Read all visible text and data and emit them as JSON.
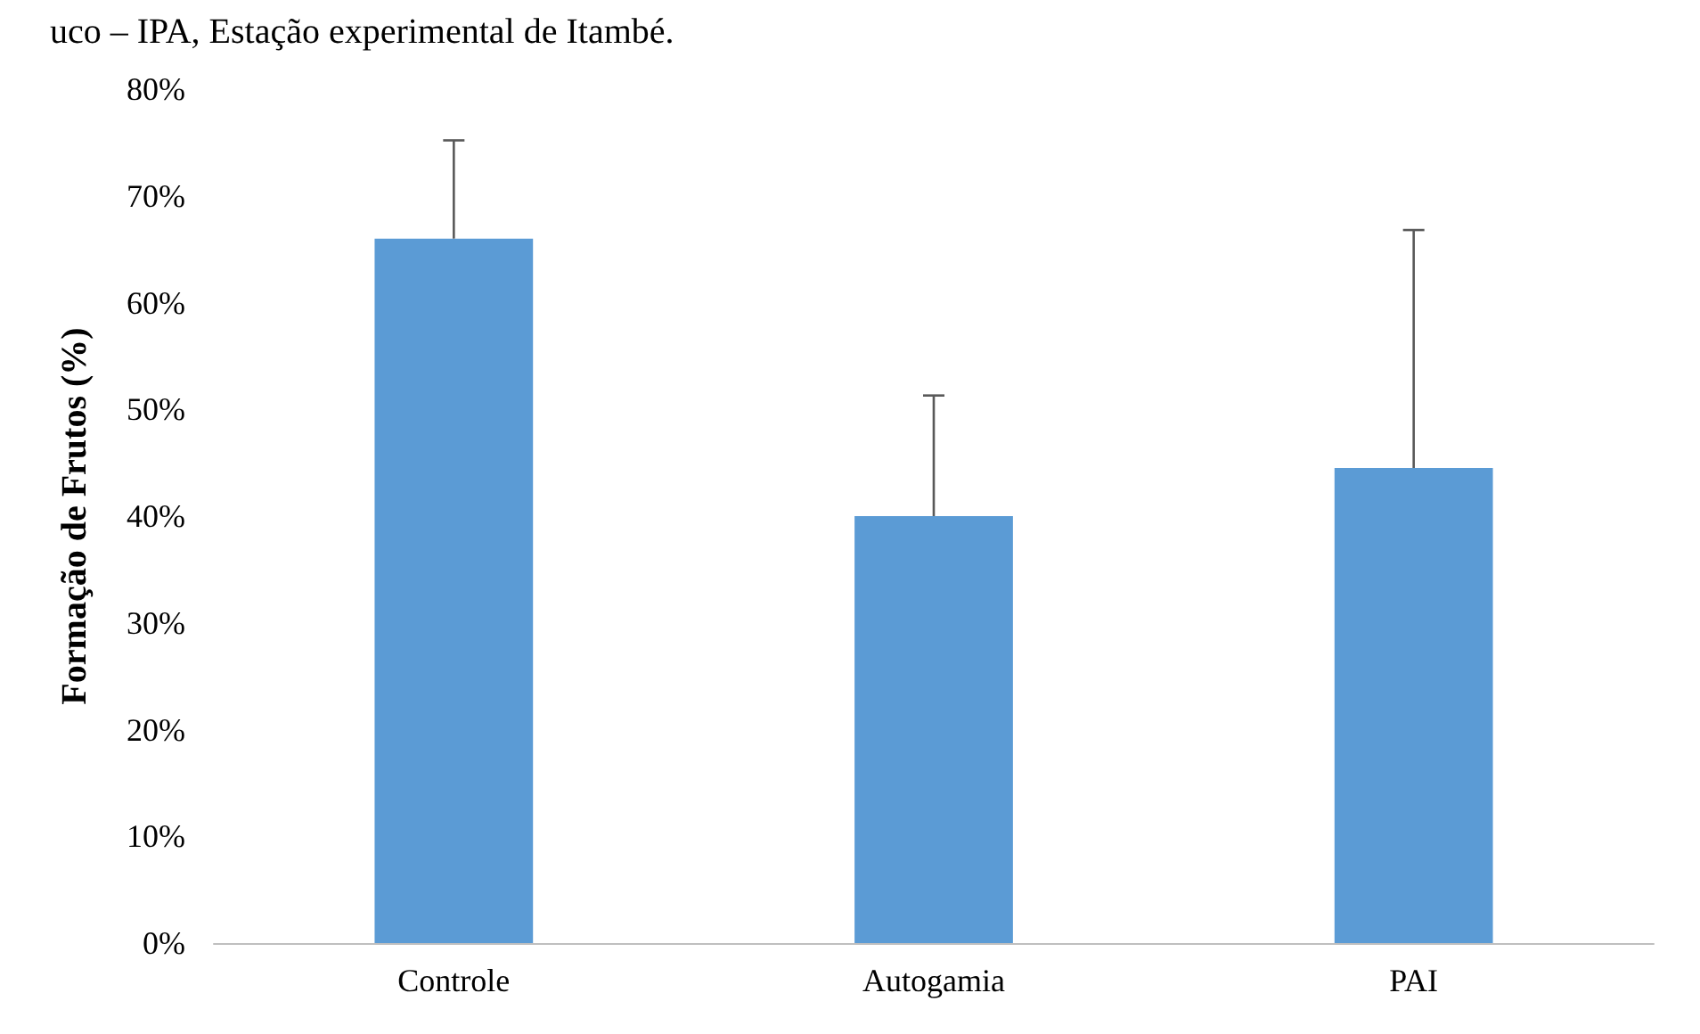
{
  "chart_data": {
    "type": "bar",
    "ylabel": "Formação de Frutos (%)",
    "annotations": [
      "uco – IPA, Estação experimental de Itambé."
    ],
    "categories": [
      "Controle",
      "Autogamia",
      "PAI"
    ],
    "values": [
      66,
      40,
      44.5
    ],
    "color": "#5b9bd5",
    "errors": [
      [
        66,
        75.2
      ],
      [
        40,
        51.3
      ],
      [
        44.5,
        66.8
      ]
    ],
    "ylim": [
      0,
      80
    ],
    "yticks": [
      {
        "value": 0,
        "label": "0%"
      },
      {
        "value": 10,
        "label": "10%"
      },
      {
        "value": 20,
        "label": "20%"
      },
      {
        "value": 30,
        "label": "30%"
      },
      {
        "value": 40,
        "label": "40%"
      },
      {
        "value": 50,
        "label": "50%"
      },
      {
        "value": 60,
        "label": "60%"
      },
      {
        "value": 70,
        "label": "70%"
      },
      {
        "value": 80,
        "label": "80%"
      }
    ],
    "grid": false
  }
}
